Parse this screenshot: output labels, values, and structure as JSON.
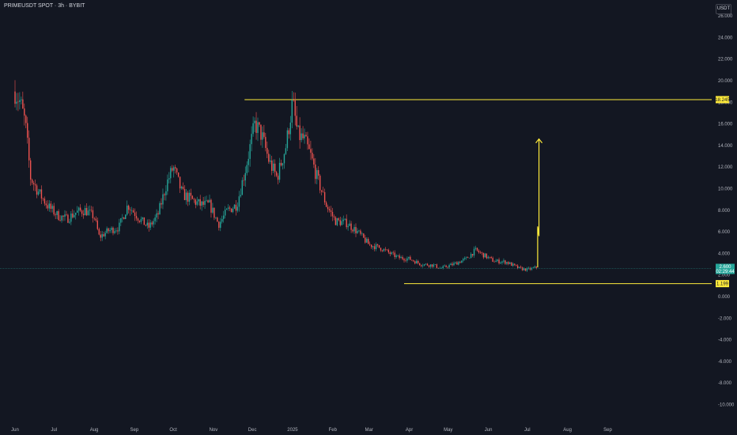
{
  "header": {
    "symbol": "PRIMEUSDT SPOT · 3h · BYBIT",
    "currency": "USDT"
  },
  "colors": {
    "background": "#131722",
    "up": "#26a69a",
    "down": "#ef5350",
    "level_line": "#ffeb3b",
    "axis_text": "#b2b5be"
  },
  "chart_data": {
    "type": "candlestick",
    "title": "PRIMEUSDT SPOT · 3h · BYBIT",
    "ylim": [
      -10,
      27
    ],
    "y_ticks": [
      26,
      24,
      22,
      20,
      18,
      16,
      14,
      12,
      10,
      8,
      6,
      4,
      2,
      0,
      -2,
      -4,
      -6,
      -8,
      -10
    ],
    "y_tick_labels": [
      "26.000",
      "24.000",
      "22.000",
      "20.000",
      "18.000",
      "16.000",
      "14.000",
      "12.000",
      "10.000",
      "8.000",
      "6.000",
      "4.000",
      "2.000",
      "0.000",
      "-2.000",
      "-4.000",
      "-6.000",
      "-8.000",
      "-10.000"
    ],
    "x_ticks": [
      "Jun",
      "Jul",
      "Aug",
      "Sep",
      "Oct",
      "Nov",
      "Dec",
      "2025",
      "Feb",
      "Mar",
      "Apr",
      "May",
      "Jun",
      "Jul",
      "Aug",
      "Sep"
    ],
    "price_path": [
      [
        "2024-06-01",
        19.0
      ],
      [
        "2024-06-05",
        18.0
      ],
      [
        "2024-06-09",
        16.0
      ],
      [
        "2024-06-13",
        11.0
      ],
      [
        "2024-06-20",
        9.5
      ],
      [
        "2024-06-27",
        8.3
      ],
      [
        "2024-07-04",
        7.5
      ],
      [
        "2024-07-11",
        7.2
      ],
      [
        "2024-07-18",
        7.8
      ],
      [
        "2024-07-25",
        8.0
      ],
      [
        "2024-08-01",
        7.4
      ],
      [
        "2024-08-05",
        5.5
      ],
      [
        "2024-08-12",
        6.1
      ],
      [
        "2024-08-20",
        6.4
      ],
      [
        "2024-08-27",
        8.5
      ],
      [
        "2024-09-05",
        7.2
      ],
      [
        "2024-09-12",
        6.4
      ],
      [
        "2024-09-19",
        7.5
      ],
      [
        "2024-09-26",
        10.5
      ],
      [
        "2024-10-01",
        12.0
      ],
      [
        "2024-10-08",
        9.5
      ],
      [
        "2024-10-15",
        9.0
      ],
      [
        "2024-10-22",
        8.5
      ],
      [
        "2024-10-29",
        8.5
      ],
      [
        "2024-11-05",
        6.7
      ],
      [
        "2024-11-12",
        8.0
      ],
      [
        "2024-11-19",
        8.5
      ],
      [
        "2024-11-26",
        12.0
      ],
      [
        "2024-12-03",
        16.0
      ],
      [
        "2024-12-08",
        15.0
      ],
      [
        "2024-12-14",
        12.5
      ],
      [
        "2024-12-20",
        11.0
      ],
      [
        "2024-12-27",
        14.0
      ],
      [
        "2025-01-01",
        18.0
      ],
      [
        "2025-01-05",
        15.0
      ],
      [
        "2025-01-10",
        14.5
      ],
      [
        "2025-01-15",
        13.0
      ],
      [
        "2025-01-20",
        11.0
      ],
      [
        "2025-01-27",
        8.5
      ],
      [
        "2025-02-03",
        7.0
      ],
      [
        "2025-02-12",
        6.8
      ],
      [
        "2025-02-20",
        6.0
      ],
      [
        "2025-03-01",
        4.8
      ],
      [
        "2025-03-10",
        4.5
      ],
      [
        "2025-03-17",
        4.0
      ],
      [
        "2025-03-24",
        3.6
      ],
      [
        "2025-04-01",
        3.5
      ],
      [
        "2025-04-10",
        3.0
      ],
      [
        "2025-04-20",
        2.9
      ],
      [
        "2025-04-25",
        2.6
      ],
      [
        "2025-05-05",
        3.0
      ],
      [
        "2025-05-15",
        3.5
      ],
      [
        "2025-05-22",
        4.3
      ],
      [
        "2025-05-29",
        3.8
      ],
      [
        "2025-06-05",
        3.3
      ],
      [
        "2025-06-15",
        3.2
      ],
      [
        "2025-06-25",
        2.6
      ],
      [
        "2025-07-01",
        2.5
      ],
      [
        "2025-07-05",
        2.6
      ],
      [
        "2025-07-08",
        2.7
      ]
    ],
    "horizontal_levels": [
      {
        "value": 18.245,
        "label": "18.245",
        "from": "2024-11-25",
        "to": "axis"
      },
      {
        "value": 1.199,
        "label": "1.199",
        "from": "2025-03-28",
        "to": "axis"
      }
    ],
    "last_price": {
      "value": 2.6,
      "label": "2.600",
      "countdown": "02:29:44"
    },
    "arrow": {
      "points": [
        [
          "2025-07-09",
          2.7
        ],
        [
          "2025-07-09",
          6.5
        ],
        [
          "2025-07-10",
          5.6
        ],
        [
          "2025-07-10",
          14.6
        ]
      ]
    }
  }
}
